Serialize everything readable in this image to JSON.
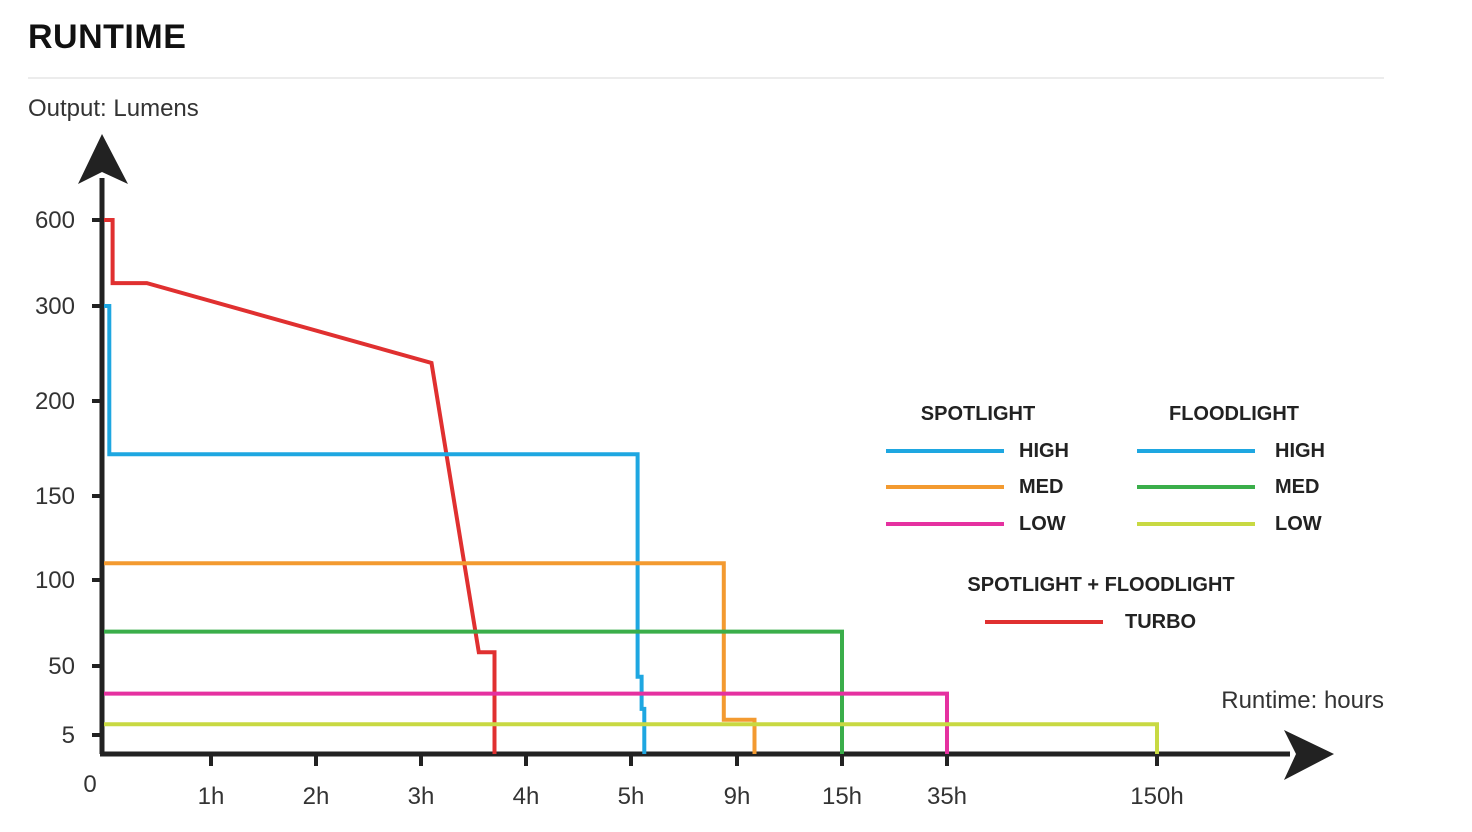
{
  "heading": "RUNTIME",
  "chart_data": {
    "type": "line",
    "title": "RUNTIME",
    "ylabel": "Output: Lumens",
    "xlabel": "Runtime: hours",
    "origin_label": "0",
    "y_ticks": [
      "600",
      "300",
      "200",
      "150",
      "100",
      "50",
      "5"
    ],
    "x_ticks": [
      "1h",
      "2h",
      "3h",
      "4h",
      "5h",
      "9h",
      "15h",
      "35h",
      "150h"
    ],
    "x_scale": "non-linear (categorical tick spacing)",
    "y_scale": "non-linear (categorical tick spacing)",
    "grid": false,
    "legend_placement": "right",
    "legend": {
      "spotlight_heading": "SPOTLIGHT",
      "floodlight_heading": "FLOODLIGHT",
      "combo_heading": "SPOTLIGHT + FLOODLIGHT",
      "spotlight": [
        {
          "label": "HIGH",
          "color": "#1ea7e1"
        },
        {
          "label": "MED",
          "color": "#f39a30"
        },
        {
          "label": "LOW",
          "color": "#e531a0"
        }
      ],
      "floodlight": [
        {
          "label": "HIGH",
          "color": "#1ea7e1"
        },
        {
          "label": "MED",
          "color": "#3aae4a"
        },
        {
          "label": "LOW",
          "color": "#c8d942"
        }
      ],
      "combo": [
        {
          "label": "TURBO",
          "color": "#e03030"
        }
      ]
    },
    "series": [
      {
        "name": "TURBO",
        "color": "#e03030",
        "points": [
          [
            0,
            600
          ],
          [
            0.08,
            600
          ],
          [
            0.08,
            380
          ],
          [
            0.4,
            380
          ],
          [
            3.1,
            240
          ],
          [
            3.55,
            58
          ],
          [
            3.7,
            58
          ],
          [
            3.7,
            0
          ]
        ]
      },
      {
        "name": "HIGH",
        "color": "#1ea7e1",
        "points": [
          [
            0,
            300
          ],
          [
            0.05,
            300
          ],
          [
            0.05,
            172
          ],
          [
            5.25,
            172
          ],
          [
            5.25,
            43
          ],
          [
            5.4,
            43
          ],
          [
            5.4,
            22
          ],
          [
            5.5,
            22
          ],
          [
            5.5,
            0
          ]
        ]
      },
      {
        "name": "MED",
        "color": "#f39a30",
        "points": [
          [
            0,
            110
          ],
          [
            8.5,
            110
          ],
          [
            8.5,
            15
          ],
          [
            10.0,
            15
          ],
          [
            10.0,
            0
          ]
        ]
      },
      {
        "name": "MED",
        "color": "#3aae4a",
        "points": [
          [
            0,
            70
          ],
          [
            15,
            70
          ],
          [
            15,
            0
          ]
        ]
      },
      {
        "name": "LOW",
        "color": "#e531a0",
        "points": [
          [
            0,
            32
          ],
          [
            35,
            32
          ],
          [
            35,
            0
          ]
        ]
      },
      {
        "name": "LOW",
        "color": "#c8d942",
        "points": [
          [
            0,
            12
          ],
          [
            150,
            12
          ],
          [
            150,
            0
          ]
        ]
      }
    ]
  }
}
